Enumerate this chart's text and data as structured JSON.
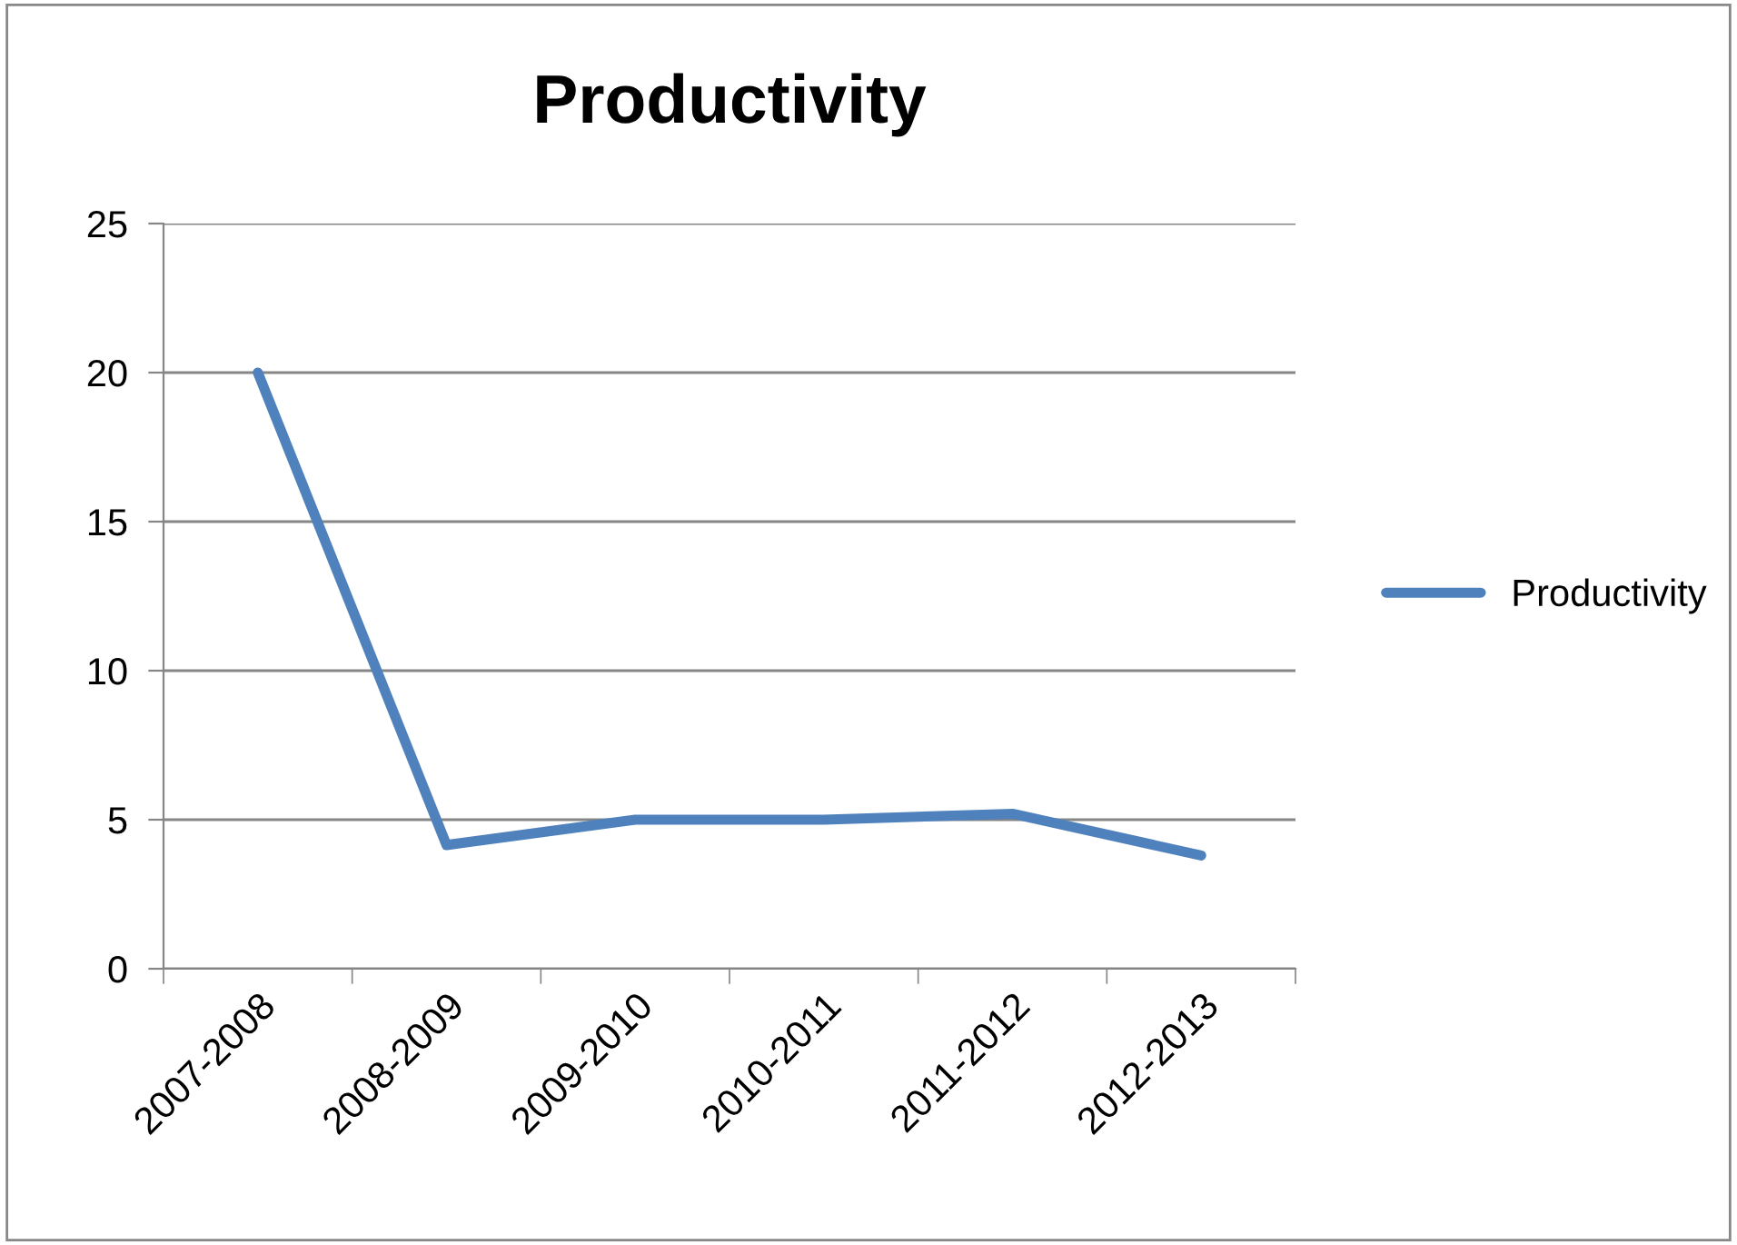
{
  "chart_data": {
    "type": "line",
    "title": "Productivity",
    "categories": [
      "2007-2008",
      "2008-2009",
      "2009-2010",
      "2010-2011",
      "2011-2012",
      "2012-2013"
    ],
    "series": [
      {
        "name": "Productivity",
        "color": "#4f81bd",
        "values": [
          20,
          4.15,
          5,
          5,
          5.2,
          3.8
        ]
      }
    ],
    "ylim": [
      0,
      25
    ],
    "yticks": [
      0,
      5,
      10,
      15,
      20,
      25
    ],
    "grid": "y",
    "legend": "right",
    "marker": "none",
    "line_style": "solid"
  }
}
